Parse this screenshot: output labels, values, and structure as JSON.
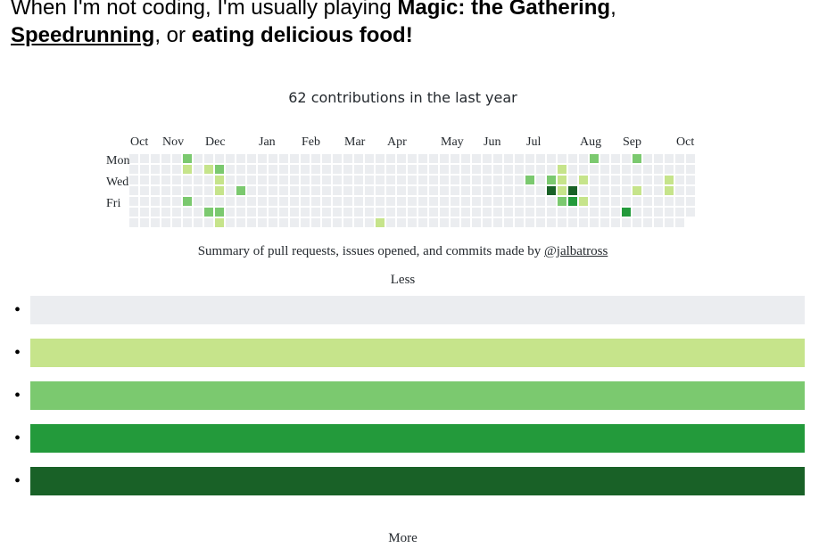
{
  "intro": {
    "prefix": "When I'm not coding, I'm usually playing ",
    "hobby1": "Magic: the Gathering",
    "sep1": ",",
    "hobby2": "Speedrunning",
    "sep2": ", or ",
    "hobby3": "eating delicious food!"
  },
  "contributions": {
    "title": "62 contributions in the last year",
    "months": [
      "Oct",
      "Nov",
      "Dec",
      "Jan",
      "Feb",
      "Mar",
      "Apr",
      "May",
      "Jun",
      "Jul",
      "Aug",
      "Sep",
      "Oct"
    ],
    "days": [
      "Mon",
      "Wed",
      "Fri"
    ],
    "summary_prefix": "Summary of pull requests, issues opened, and commits made by ",
    "user": "@jalbatross",
    "legend_less": "Less",
    "legend_more": "More",
    "level_colors": [
      "#ebedf0",
      "#c6e48b",
      "#7bc96f",
      "#239a3b",
      "#196127"
    ],
    "weeks": 53,
    "last_week_days": 6,
    "cells": [
      [
        5,
        0,
        2
      ],
      [
        5,
        1,
        1
      ],
      [
        5,
        4,
        2
      ],
      [
        7,
        1,
        1
      ],
      [
        7,
        5,
        2
      ],
      [
        8,
        1,
        2
      ],
      [
        8,
        2,
        1
      ],
      [
        8,
        3,
        1
      ],
      [
        8,
        5,
        2
      ],
      [
        8,
        6,
        1
      ],
      [
        10,
        3,
        2
      ],
      [
        23,
        6,
        1
      ],
      [
        37,
        2,
        2
      ],
      [
        39,
        2,
        2
      ],
      [
        39,
        3,
        4
      ],
      [
        40,
        1,
        1
      ],
      [
        40,
        2,
        1
      ],
      [
        40,
        3,
        1
      ],
      [
        40,
        4,
        2
      ],
      [
        41,
        3,
        4
      ],
      [
        41,
        4,
        3
      ],
      [
        42,
        2,
        1
      ],
      [
        42,
        4,
        1
      ],
      [
        43,
        0,
        2
      ],
      [
        46,
        5,
        3
      ],
      [
        47,
        0,
        2
      ],
      [
        47,
        3,
        1
      ],
      [
        47,
        7,
        1
      ],
      [
        50,
        2,
        1
      ],
      [
        50,
        3,
        1
      ]
    ]
  }
}
